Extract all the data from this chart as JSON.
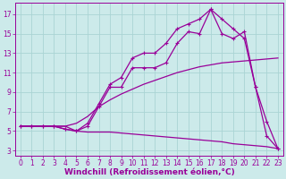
{
  "xlabel": "Windchill (Refroidissement éolien,°C)",
  "bg_color": "#cceaea",
  "grid_color": "#aad4d4",
  "line_color": "#990099",
  "tick_fontsize": 5.5,
  "xlabel_fontsize": 6.5,
  "line1_x": [
    0,
    1,
    2,
    3,
    4,
    5,
    6,
    7,
    8,
    9,
    10,
    11,
    12,
    13,
    14,
    15,
    16,
    17,
    18,
    19,
    20,
    21,
    22,
    23
  ],
  "line1_y": [
    5.5,
    5.5,
    5.5,
    5.5,
    5.5,
    5.0,
    4.9,
    4.9,
    4.9,
    4.8,
    4.7,
    4.6,
    4.5,
    4.4,
    4.3,
    4.2,
    4.1,
    4.0,
    3.9,
    3.7,
    3.6,
    3.5,
    3.4,
    3.2
  ],
  "line2_x": [
    0,
    1,
    2,
    3,
    4,
    5,
    6,
    7,
    8,
    9,
    10,
    11,
    12,
    13,
    14,
    15,
    16,
    17,
    18,
    19,
    20,
    21,
    22,
    23
  ],
  "line2_y": [
    5.5,
    5.5,
    5.5,
    5.5,
    5.5,
    5.8,
    6.5,
    7.5,
    8.2,
    8.8,
    9.3,
    9.8,
    10.2,
    10.6,
    11.0,
    11.3,
    11.6,
    11.8,
    12.0,
    12.1,
    12.2,
    12.3,
    12.4,
    12.5
  ],
  "line3_x": [
    0,
    1,
    2,
    3,
    4,
    5,
    6,
    7,
    8,
    9,
    10,
    11,
    12,
    13,
    14,
    15,
    16,
    17,
    18,
    19,
    20,
    21,
    22,
    23
  ],
  "line3_y": [
    5.5,
    5.5,
    5.5,
    5.5,
    5.2,
    5.0,
    5.5,
    7.5,
    9.5,
    9.5,
    11.5,
    11.5,
    11.5,
    12.0,
    14.0,
    15.2,
    15.0,
    17.5,
    15.0,
    14.5,
    15.2,
    9.5,
    4.5,
    3.2
  ],
  "line4_x": [
    0,
    1,
    2,
    3,
    4,
    5,
    6,
    7,
    8,
    9,
    10,
    11,
    12,
    13,
    14,
    15,
    16,
    17,
    18,
    19,
    20,
    21,
    22,
    23
  ],
  "line4_y": [
    5.5,
    5.5,
    5.5,
    5.5,
    5.2,
    5.0,
    5.8,
    7.8,
    9.8,
    10.5,
    12.5,
    13.0,
    13.0,
    14.0,
    15.5,
    16.0,
    16.5,
    17.5,
    16.5,
    15.5,
    14.5,
    9.5,
    6.0,
    3.2
  ]
}
